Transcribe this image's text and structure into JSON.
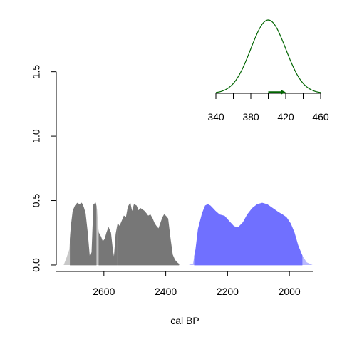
{
  "chart_data": [
    {
      "type": "area",
      "title": "",
      "xlabel": "cal BP",
      "ylabel": "",
      "x_reversed": true,
      "xlim": [
        2754,
        1922
      ],
      "ylim": [
        -0.05,
        1.57
      ],
      "xticks": [
        "2600",
        "2400",
        "2200",
        "2000"
      ],
      "yticks": [
        "0.0",
        "0.5",
        "1.0",
        "1.5"
      ],
      "grid": false,
      "series": [
        {
          "color": "#777777",
          "band_color": "#c8c8c8",
          "hpd_ranges": [
            [
              2710,
              2624
            ],
            [
              2617,
              2556
            ],
            [
              2554,
              2357
            ]
          ],
          "x": [
            2730,
            2722,
            2712,
            2706,
            2700,
            2693,
            2686,
            2679,
            2672,
            2666,
            2660,
            2653,
            2646,
            2639,
            2633,
            2627,
            2622,
            2617,
            2610,
            2604,
            2597,
            2591,
            2585,
            2578,
            2572,
            2567,
            2561,
            2555,
            2549,
            2542,
            2535,
            2528,
            2522,
            2515,
            2509,
            2502,
            2495,
            2488,
            2482,
            2476,
            2470,
            2463,
            2457,
            2450,
            2443,
            2436,
            2430,
            2423,
            2416,
            2410,
            2405,
            2400,
            2393,
            2385,
            2378,
            2371,
            2364,
            2359,
            2355,
            2346,
            2338
          ],
          "values": [
            0.0,
            0.05,
            0.12,
            0.3,
            0.42,
            0.46,
            0.48,
            0.47,
            0.48,
            0.45,
            0.4,
            0.25,
            0.05,
            0.1,
            0.47,
            0.48,
            0.43,
            0.25,
            0.22,
            0.18,
            0.2,
            0.25,
            0.29,
            0.25,
            0.12,
            0.05,
            0.24,
            0.32,
            0.3,
            0.34,
            0.38,
            0.37,
            0.45,
            0.48,
            0.41,
            0.47,
            0.46,
            0.42,
            0.44,
            0.43,
            0.42,
            0.4,
            0.38,
            0.39,
            0.36,
            0.32,
            0.3,
            0.28,
            0.33,
            0.37,
            0.39,
            0.38,
            0.36,
            0.2,
            0.08,
            0.04,
            0.02,
            0.01,
            0.0,
            0.0,
            0.0
          ]
        },
        {
          "color": "#7070ff",
          "band_color": "#b8b8ff",
          "hpd_ranges": [
            [
              2308,
              1958
            ]
          ],
          "x": [
            2340,
            2326,
            2312,
            2303,
            2295,
            2282,
            2272,
            2264,
            2256,
            2248,
            2240,
            2226,
            2210,
            2195,
            2180,
            2166,
            2150,
            2136,
            2120,
            2104,
            2088,
            2072,
            2060,
            2048,
            2036,
            2022,
            2010,
            1996,
            1984,
            1972,
            1960,
            1952,
            1944,
            1934,
            1925
          ],
          "values": [
            0.0,
            0.0,
            0.01,
            0.12,
            0.28,
            0.4,
            0.46,
            0.47,
            0.46,
            0.44,
            0.42,
            0.39,
            0.38,
            0.34,
            0.3,
            0.29,
            0.33,
            0.39,
            0.44,
            0.47,
            0.48,
            0.47,
            0.45,
            0.43,
            0.41,
            0.39,
            0.37,
            0.32,
            0.25,
            0.15,
            0.08,
            0.05,
            0.02,
            0.01,
            0.0
          ]
        }
      ]
    },
    {
      "type": "line",
      "title": "",
      "xlim": [
        340,
        460
      ],
      "xticks": [
        "340",
        "380",
        "420",
        "460"
      ],
      "mean": 400,
      "sd": 20,
      "color": "#006400",
      "arrow_range": [
        400,
        420
      ]
    }
  ]
}
